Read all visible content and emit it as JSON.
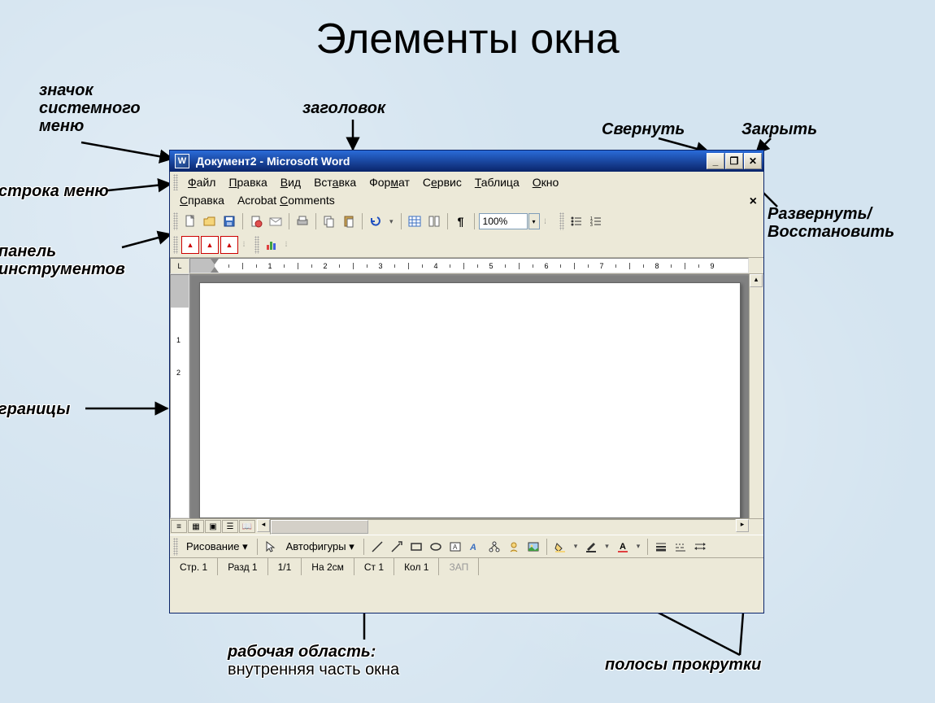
{
  "slide": {
    "title": "Элементы окна"
  },
  "labels": {
    "system_icon": "значок\nсистемного\nменю",
    "title": "заголовок",
    "minimize": "Свернуть",
    "close": "Закрыть",
    "maximize": "Развернуть/\nВосстановить",
    "menubar": "строка меню",
    "toolbar": "панель\nинструментов",
    "borders": "границы",
    "workarea_b": "рабочая область",
    "workarea_sub": "внутренняя часть окна",
    "scrollbars": "полосы прокрутки"
  },
  "window": {
    "title": "Документ2 - Microsoft Word",
    "icon_letter": "W",
    "controls": {
      "min": "_",
      "max": "❐",
      "close": "✕"
    }
  },
  "menu": {
    "items": [
      "Файл",
      "Правка",
      "Вид",
      "Вставка",
      "Формат",
      "Сервис",
      "Таблица",
      "Окно",
      "Справка",
      "Acrobat Comments"
    ],
    "close_x": "×"
  },
  "toolbar": {
    "zoom": "100%"
  },
  "ruler": {
    "corner": "L"
  },
  "drawing": {
    "label": "Рисование",
    "autofigs": "Автофигуры"
  },
  "status": {
    "page": "Стр. 1",
    "section": "Разд 1",
    "pages": "1/1",
    "at": "На  2см",
    "line": "Ст 1",
    "col": "Кол 1",
    "rec": "ЗАП"
  }
}
